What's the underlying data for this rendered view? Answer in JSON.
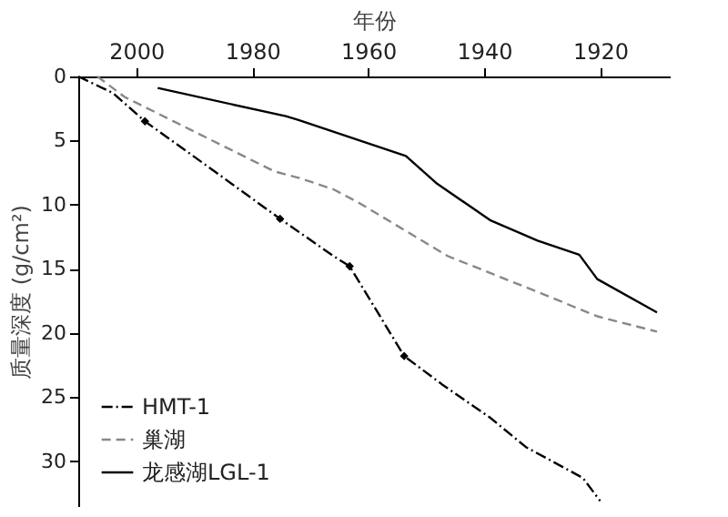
{
  "chart_data": {
    "type": "line",
    "xlabel": "年份",
    "ylabel": "质量深度 (g/cm²)",
    "xlim": [
      2010,
      1908
    ],
    "xticks": [
      2000,
      1980,
      1960,
      1940,
      1920
    ],
    "ylim": [
      33.5,
      0
    ],
    "yticks": [
      0,
      5,
      10,
      15,
      20,
      25,
      30
    ],
    "grid": false,
    "legend": "bottom left",
    "series": [
      {
        "name": "HMT-1",
        "color": "#000000",
        "line_style": "dashdot",
        "x": [
          2010,
          2004,
          1998.5,
          1986.5,
          1975.2,
          1966,
          1963.2,
          1953.8,
          1947.3,
          1939,
          1932.8,
          1923,
          1920
        ],
        "values": [
          0,
          1.3,
          3.5,
          7.4,
          11.1,
          14.0,
          14.8,
          21.8,
          24.0,
          26.6,
          28.9,
          31.3,
          33.1
        ]
      },
      {
        "name": "巢湖",
        "color": "#888888",
        "line_style": "dashed",
        "x": [
          2006.7,
          2002,
          1976.2,
          1972,
          1966,
          1961.8,
          1946.3,
          1930.8,
          1920.5,
          1910.2
        ],
        "values": [
          0,
          1.6,
          7.4,
          7.9,
          8.8,
          9.8,
          14.0,
          16.8,
          18.7,
          19.9
        ]
      },
      {
        "name": "龙感湖LGL-1",
        "color": "#000000",
        "line_style": "solid",
        "x": [
          1996.3,
          1974.2,
          1972,
          1953.5,
          1948.3,
          1939,
          1930.8,
          1923.6,
          1920.5,
          1910.2
        ],
        "values": [
          0.9,
          3.1,
          3.4,
          6.2,
          8.3,
          11.2,
          12.8,
          13.9,
          15.8,
          18.4
        ]
      },
      {
        "type": "scatter",
        "marker": "diamond",
        "color": "#000000",
        "x": [
          1998.5,
          1975.2,
          1963.2,
          1953.8
        ],
        "values": [
          3.5,
          11.1,
          14.8,
          21.8
        ]
      }
    ]
  }
}
